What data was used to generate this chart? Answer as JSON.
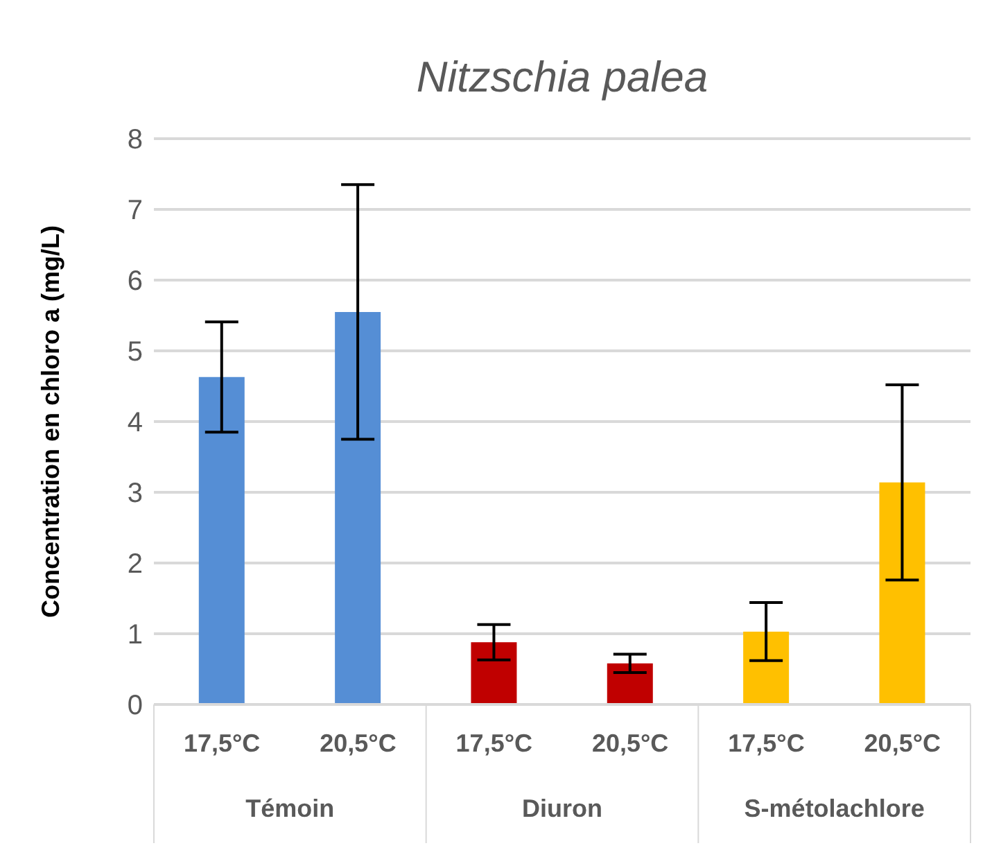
{
  "chart_data": {
    "type": "bar",
    "title": "Nitzschia palea",
    "ylabel": "Concentration en chloro a (mg/L)",
    "categories": [
      "17,5°C",
      "20,5°C",
      "17,5°C",
      "20,5°C",
      "17,5°C",
      "20,5°C"
    ],
    "values": [
      4.63,
      5.55,
      0.88,
      0.58,
      1.03,
      3.14
    ],
    "errors": [
      0.78,
      1.8,
      0.25,
      0.13,
      0.41,
      1.38
    ],
    "colors": [
      "#558ed5",
      "#558ed5",
      "#c00000",
      "#c00000",
      "#ffc000",
      "#ffc000"
    ],
    "annotations": [
      "Témoin",
      "Diuron",
      "S-métolachlore"
    ],
    "ylim": [
      0,
      8
    ],
    "yticks": [
      0,
      1,
      2,
      3,
      4,
      5,
      6,
      7,
      8
    ],
    "grid": "y",
    "legend": false
  }
}
